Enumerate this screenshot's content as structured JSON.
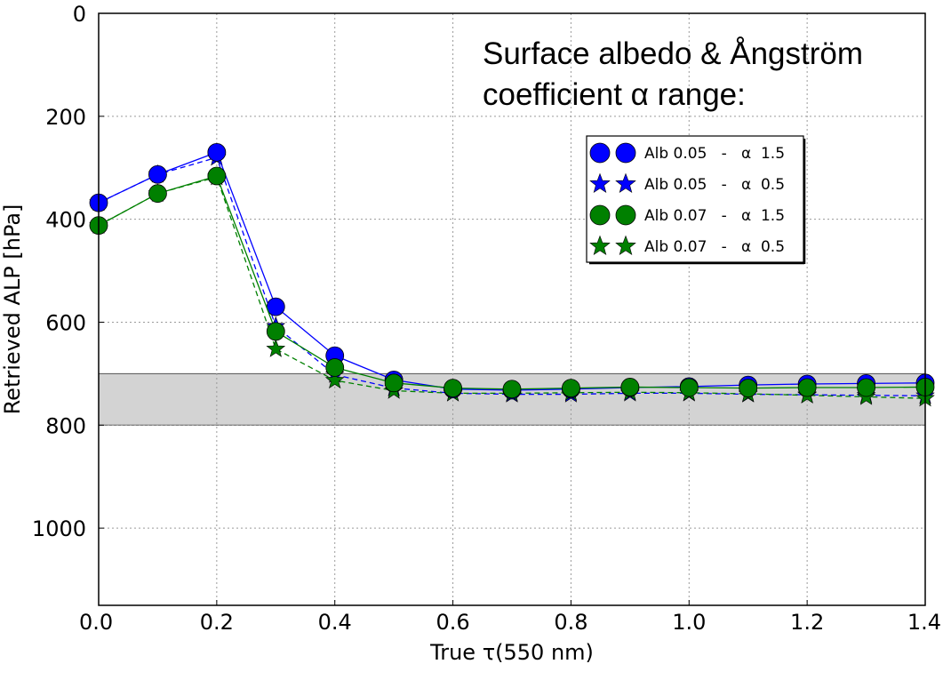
{
  "chart_data": {
    "type": "line",
    "title": "",
    "xlabel": "True  τ(550  nm)",
    "ylabel": "Retrieved ALP [hPa]",
    "xlim": [
      0.0,
      1.4
    ],
    "ylim": [
      1150,
      0
    ],
    "y_inverted": true,
    "grid": true,
    "grid_style": "dotted",
    "x_ticks": [
      "0.0",
      "0.2",
      "0.4",
      "0.6",
      "0.8",
      "1.0",
      "1.2",
      "1.4"
    ],
    "y_ticks": [
      "0",
      "200",
      "400",
      "600",
      "800",
      "1000"
    ],
    "shaded_band": [
      700,
      800
    ],
    "annotation_lines": [
      "Surface albedo & Ångström",
      "coefficient α range:"
    ],
    "legend_position": "upper-right",
    "x": [
      0.0,
      0.1,
      0.2,
      0.3,
      0.4,
      0.5,
      0.6,
      0.7,
      0.8,
      0.9,
      1.0,
      1.1,
      1.2,
      1.3,
      1.4
    ],
    "series": [
      {
        "name": "Alb 0.05   -   α  1.5",
        "color": "#0000ff",
        "marker": "circle",
        "linestyle": "solid",
        "values": [
          368,
          313,
          270,
          570,
          665,
          712,
          730,
          732,
          730,
          727,
          725,
          722,
          720,
          719,
          718
        ]
      },
      {
        "name": "Alb 0.05   -   α  0.5",
        "color": "#0000ff",
        "marker": "star",
        "linestyle": "dashed",
        "values": [
          368,
          313,
          280,
          608,
          702,
          728,
          738,
          740,
          740,
          738,
          738,
          740,
          741,
          742,
          743
        ]
      },
      {
        "name": "Alb 0.07   -   α  1.5",
        "color": "#008000",
        "marker": "circle",
        "linestyle": "solid",
        "values": [
          412,
          350,
          316,
          618,
          688,
          718,
          728,
          730,
          728,
          726,
          727,
          728,
          727,
          727,
          726
        ]
      },
      {
        "name": "Alb 0.07   -   α  0.5",
        "color": "#008000",
        "marker": "star",
        "linestyle": "dashed",
        "values": [
          412,
          350,
          318,
          652,
          713,
          733,
          738,
          738,
          737,
          736,
          737,
          739,
          742,
          745,
          748
        ]
      }
    ]
  }
}
